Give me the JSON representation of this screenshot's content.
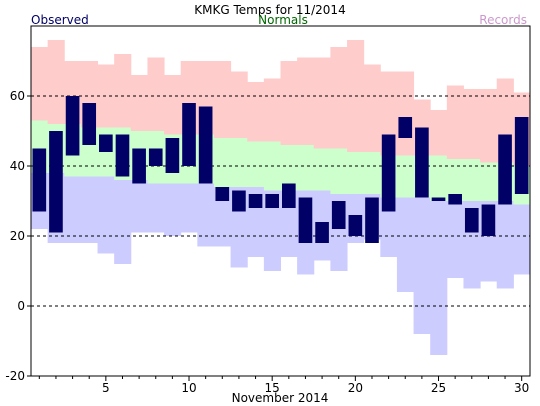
{
  "chart_data": {
    "type": "bar",
    "title": "KMKG Temps for 11/2014",
    "xlabel": "November 2014",
    "ylabel": "",
    "xlim": [
      1,
      30
    ],
    "ylim": [
      -20,
      80
    ],
    "y_ticks": [
      -20,
      0,
      20,
      40,
      60
    ],
    "x_ticks": [
      5,
      10,
      15,
      20,
      25,
      30
    ],
    "grid": "dashed horizontal lines at -20, 0, 20, 40, 60",
    "legend": {
      "placement": "top",
      "observed": "Observed",
      "normals": "Normals",
      "records": "Records"
    },
    "colors": {
      "observed": "#000066",
      "normals": "#ccffcc",
      "record_high": "#ffcccc",
      "record_low": "#ccccff",
      "legend_observed": "#000066",
      "legend_normals": "#006600",
      "legend_records": "#cc99cc"
    },
    "days": [
      1,
      2,
      3,
      4,
      5,
      6,
      7,
      8,
      9,
      10,
      11,
      12,
      13,
      14,
      15,
      16,
      17,
      18,
      19,
      20,
      21,
      22,
      23,
      24,
      25,
      26,
      27,
      28,
      29,
      30
    ],
    "observed_high": [
      45,
      50,
      60,
      58,
      49,
      49,
      45,
      45,
      48,
      58,
      57,
      34,
      33,
      32,
      32,
      35,
      31,
      24,
      30,
      26,
      31,
      49,
      54,
      51,
      31,
      32,
      28,
      29,
      49,
      54
    ],
    "observed_low": [
      27,
      21,
      43,
      46,
      44,
      37,
      35,
      40,
      38,
      40,
      35,
      30,
      27,
      28,
      28,
      28,
      18,
      18,
      22,
      20,
      18,
      27,
      48,
      31,
      30,
      29,
      21,
      20,
      29,
      32
    ],
    "normal_high": [
      53,
      52,
      52,
      51,
      51,
      51,
      50,
      50,
      49,
      49,
      49,
      48,
      48,
      47,
      47,
      46,
      46,
      45,
      45,
      44,
      44,
      43,
      43,
      43,
      43,
      42,
      42,
      41,
      41,
      40
    ],
    "normal_low": [
      38,
      38,
      37,
      37,
      37,
      36,
      36,
      35,
      35,
      35,
      35,
      34,
      34,
      34,
      33,
      33,
      33,
      33,
      32,
      32,
      32,
      31,
      31,
      31,
      30,
      30,
      30,
      30,
      30,
      29
    ],
    "record_high": [
      74,
      76,
      70,
      70,
      69,
      72,
      66,
      71,
      66,
      70,
      70,
      70,
      67,
      64,
      65,
      70,
      71,
      71,
      74,
      76,
      69,
      67,
      67,
      59,
      56,
      63,
      62,
      62,
      65,
      61
    ],
    "record_low": [
      22,
      18,
      18,
      18,
      15,
      12,
      21,
      21,
      20,
      21,
      17,
      17,
      11,
      14,
      10,
      14,
      9,
      13,
      10,
      18,
      19,
      14,
      4,
      -8,
      -14,
      8,
      5,
      7,
      5,
      9
    ]
  }
}
